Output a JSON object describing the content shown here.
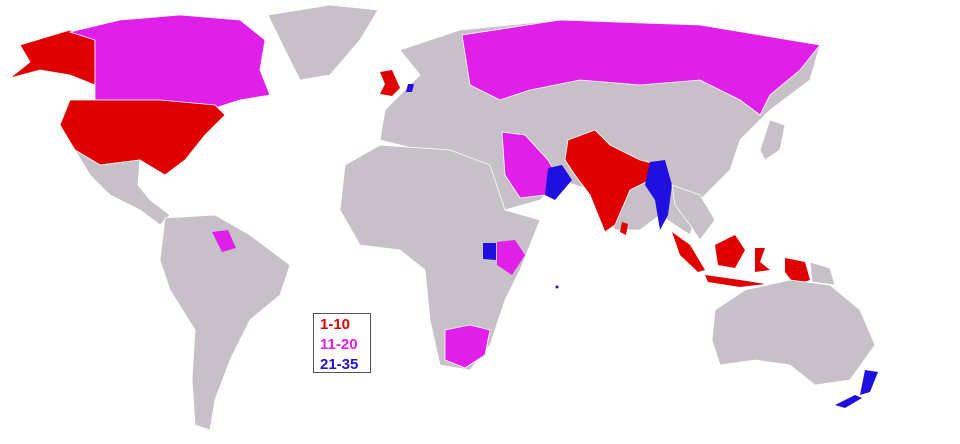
{
  "legend": {
    "items": [
      {
        "label": "1-10",
        "color": "#e00000"
      },
      {
        "label": "11-20",
        "color": "#e020e8"
      },
      {
        "label": "21-35",
        "color": "#2010e0"
      }
    ]
  },
  "colors": {
    "land": "#c8c0c8",
    "water": "#ffffff"
  },
  "highlighted_regions": {
    "1-10": [
      "United States",
      "United Kingdom",
      "India",
      "Indonesia"
    ],
    "11-20": [
      "Canada",
      "Russia",
      "Saudi Arabia",
      "South Africa",
      "Kenya",
      "Guyana"
    ],
    "21-35": [
      "Myanmar",
      "New Zealand",
      "Oman",
      "Uganda"
    ]
  }
}
